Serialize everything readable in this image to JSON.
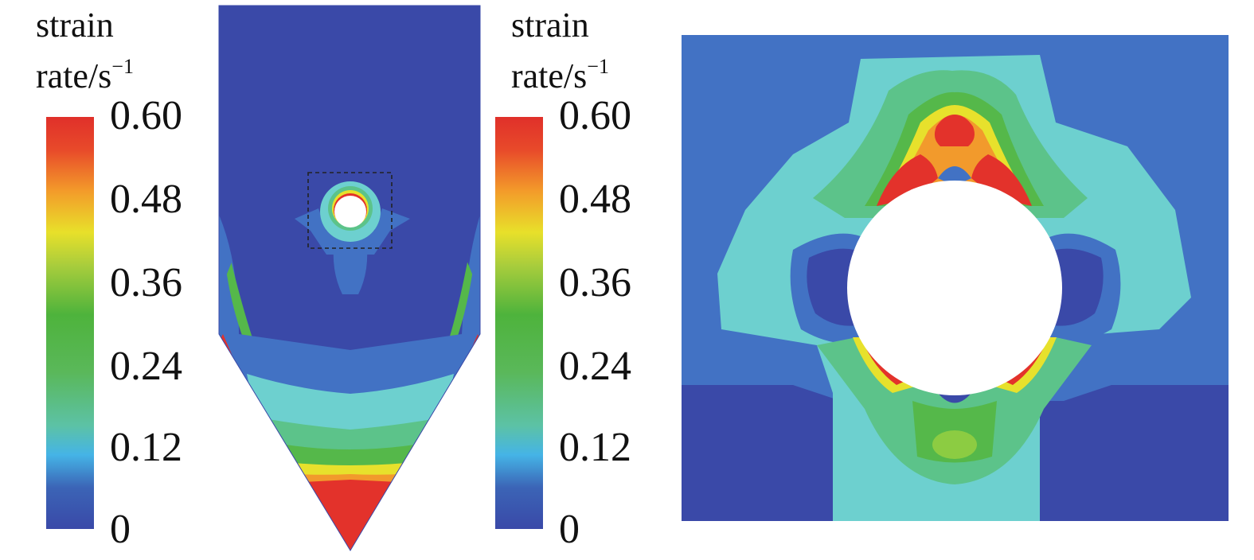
{
  "legend": {
    "title_line1": "strain",
    "title_line2": "rate/s",
    "title_sup": "−1",
    "ticks": [
      "0.60",
      "0.48",
      "0.36",
      "0.24",
      "0.12",
      "0"
    ],
    "tick_values": [
      0.6,
      0.48,
      0.36,
      0.24,
      0.12,
      0
    ],
    "range": [
      0,
      0.6
    ]
  },
  "colors": {
    "low": "#3a49a8",
    "blue2": "#4272c4",
    "cyan": "#6dd0cf",
    "green_light": "#5cc38a",
    "green": "#55b84a",
    "yellow": "#e7e12c",
    "orange": "#f29a2c",
    "red": "#e3322b"
  },
  "panels": {
    "silo": "silo-flow-field",
    "zoom": "zoomed-obstacle-region"
  }
}
